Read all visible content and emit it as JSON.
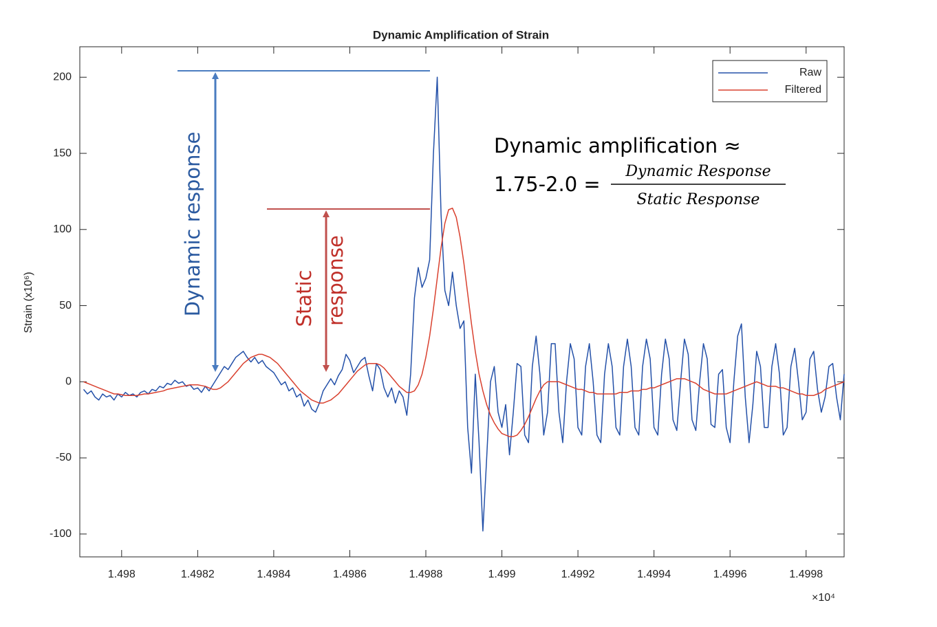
{
  "chart_data": {
    "type": "line",
    "title": "Dynamic Amplification of Strain",
    "y_label": "Strain (x10⁶)",
    "x_multiplier": "×10⁴",
    "x": [
      1.4979,
      1.49791,
      1.49792,
      1.49793,
      1.49794,
      1.49795,
      1.49796,
      1.49797,
      1.49798,
      1.49799,
      1.498,
      1.49801,
      1.49802,
      1.49803,
      1.49804,
      1.49805,
      1.49806,
      1.49807,
      1.49808,
      1.49809,
      1.4981,
      1.49811,
      1.49812,
      1.49813,
      1.49814,
      1.49815,
      1.49816,
      1.49817,
      1.49818,
      1.49819,
      1.4982,
      1.49821,
      1.49822,
      1.49823,
      1.49824,
      1.49825,
      1.49826,
      1.49827,
      1.49828,
      1.49829,
      1.4983,
      1.49831,
      1.49832,
      1.49833,
      1.49834,
      1.49835,
      1.49836,
      1.49837,
      1.49838,
      1.49839,
      1.4984,
      1.49841,
      1.49842,
      1.49843,
      1.49844,
      1.49845,
      1.49846,
      1.49847,
      1.49848,
      1.49849,
      1.4985,
      1.49851,
      1.49852,
      1.49853,
      1.49854,
      1.49855,
      1.49856,
      1.49857,
      1.49858,
      1.49859,
      1.4986,
      1.49861,
      1.49862,
      1.49863,
      1.49864,
      1.49865,
      1.49866,
      1.49867,
      1.49868,
      1.49869,
      1.4987,
      1.49871,
      1.49872,
      1.49873,
      1.49874,
      1.49875,
      1.49876,
      1.49877,
      1.49878,
      1.49879,
      1.4988,
      1.49881,
      1.49882,
      1.49883,
      1.49884,
      1.49885,
      1.49886,
      1.49887,
      1.49888,
      1.49889,
      1.4989,
      1.49891,
      1.49892,
      1.49893,
      1.49894,
      1.49895,
      1.49896,
      1.49897,
      1.49898,
      1.49899,
      1.499,
      1.49901,
      1.49902,
      1.49903,
      1.49904,
      1.49905,
      1.49906,
      1.49907,
      1.49908,
      1.49909,
      1.4991,
      1.49911,
      1.49912,
      1.49913,
      1.49914,
      1.49915,
      1.49916,
      1.49917,
      1.49918,
      1.49919,
      1.4992,
      1.49921,
      1.49922,
      1.49923,
      1.49924,
      1.49925,
      1.49926,
      1.49927,
      1.49928,
      1.49929,
      1.4993,
      1.49931,
      1.49932,
      1.49933,
      1.49934,
      1.49935,
      1.49936,
      1.49937,
      1.49938,
      1.49939,
      1.4994,
      1.49941,
      1.49942,
      1.49943,
      1.49944,
      1.49945,
      1.49946,
      1.49947,
      1.49948,
      1.49949,
      1.4995,
      1.49951,
      1.49952,
      1.49953,
      1.49954,
      1.49955,
      1.49956,
      1.49957,
      1.49958,
      1.49959,
      1.4996,
      1.49961,
      1.49962,
      1.49963,
      1.49964,
      1.49965,
      1.49966,
      1.49967,
      1.49968,
      1.49969,
      1.4997,
      1.49971,
      1.49972,
      1.49973,
      1.49974,
      1.49975,
      1.49976,
      1.49977,
      1.49978,
      1.49979,
      1.4998,
      1.49981,
      1.49982,
      1.49983,
      1.49984,
      1.49985,
      1.49986,
      1.49987,
      1.49988,
      1.49989,
      1.4999
    ],
    "series": [
      {
        "name": "Raw",
        "color": "#2350a8",
        "values": [
          -5,
          -8,
          -6,
          -10,
          -12,
          -8,
          -10,
          -9,
          -12,
          -8,
          -10,
          -7,
          -9,
          -8,
          -10,
          -7,
          -6,
          -8,
          -5,
          -6,
          -3,
          -4,
          -1,
          -2,
          1,
          -1,
          0,
          -3,
          -2,
          -5,
          -4,
          -7,
          -3,
          -6,
          -2,
          2,
          6,
          10,
          8,
          12,
          16,
          18,
          20,
          16,
          13,
          16,
          12,
          14,
          10,
          8,
          6,
          2,
          -2,
          0,
          -6,
          -4,
          -10,
          -8,
          -16,
          -12,
          -18,
          -20,
          -14,
          -6,
          -2,
          2,
          -2,
          4,
          8,
          18,
          14,
          6,
          10,
          14,
          16,
          4,
          -6,
          12,
          8,
          -4,
          -10,
          -4,
          -14,
          -6,
          -10,
          -22,
          5,
          55,
          75,
          62,
          68,
          80,
          150,
          200,
          110,
          60,
          50,
          72,
          50,
          35,
          40,
          -30,
          -60,
          5,
          -40,
          -98,
          -50,
          0,
          10,
          -20,
          -30,
          -15,
          -48,
          -20,
          12,
          10,
          -35,
          -40,
          10,
          30,
          5,
          -35,
          -20,
          25,
          25,
          -20,
          -40,
          0,
          25,
          15,
          -30,
          -35,
          10,
          25,
          0,
          -35,
          -40,
          5,
          25,
          10,
          -30,
          -35,
          10,
          28,
          10,
          -30,
          -35,
          10,
          28,
          15,
          -30,
          -35,
          5,
          28,
          15,
          -25,
          -32,
          0,
          28,
          18,
          -25,
          -32,
          0,
          25,
          15,
          -28,
          -30,
          5,
          8,
          -30,
          -40,
          0,
          30,
          38,
          -10,
          -40,
          -15,
          20,
          10,
          -30,
          -30,
          10,
          25,
          5,
          -35,
          -30,
          10,
          22,
          0,
          -25,
          -20,
          15,
          20,
          -5,
          -20,
          -10,
          10,
          12,
          -10,
          -25,
          5
        ]
      },
      {
        "name": "Filtered",
        "color": "#d9402e",
        "values": [
          0,
          -1,
          -2,
          -3,
          -4,
          -5,
          -6,
          -7,
          -8,
          -8,
          -8.5,
          -9,
          -9,
          -9,
          -9,
          -8.5,
          -8,
          -8,
          -7.5,
          -7,
          -6.5,
          -6,
          -5,
          -4.5,
          -4,
          -3.5,
          -3,
          -2.5,
          -2,
          -2,
          -2,
          -2.5,
          -3,
          -4,
          -5,
          -5,
          -4,
          -2,
          0,
          3,
          6,
          9,
          12,
          14,
          16,
          17,
          18,
          18,
          17,
          16,
          14,
          12,
          9,
          6,
          3,
          0,
          -3,
          -6,
          -8,
          -10,
          -12,
          -13,
          -14,
          -14,
          -13,
          -12,
          -10,
          -8,
          -5,
          -2,
          1,
          4,
          7,
          9,
          11,
          12,
          12,
          12,
          11,
          9,
          6,
          3,
          0,
          -3,
          -5,
          -7,
          -7,
          -6,
          -2,
          5,
          16,
          30,
          48,
          68,
          88,
          104,
          113,
          114,
          108,
          95,
          78,
          58,
          38,
          20,
          5,
          -6,
          -15,
          -22,
          -27,
          -31,
          -34,
          -35,
          -36,
          -36,
          -35,
          -32,
          -28,
          -23,
          -17,
          -11,
          -6,
          -2,
          0,
          0,
          0,
          0,
          -1,
          -2,
          -3,
          -4,
          -5,
          -5,
          -6,
          -7,
          -7,
          -8,
          -8,
          -8,
          -8,
          -8,
          -8,
          -7,
          -7,
          -7,
          -6,
          -6,
          -6,
          -5,
          -5,
          -4,
          -4,
          -3,
          -2,
          -1,
          0,
          1,
          2,
          2,
          2,
          1,
          0,
          -1,
          -3,
          -5,
          -6,
          -7,
          -8,
          -8,
          -8,
          -8,
          -7,
          -6,
          -5,
          -4,
          -3,
          -2,
          -1,
          0,
          -1,
          -2,
          -3,
          -3,
          -3,
          -4,
          -4,
          -5,
          -6,
          -7,
          -8,
          -8,
          -9,
          -9,
          -9,
          -8,
          -7,
          -5,
          -4,
          -3,
          -2,
          -1,
          0
        ]
      }
    ],
    "xlim": [
      1.49789,
      1.4999
    ],
    "ylim": [
      -115,
      220
    ],
    "xticks": [
      1.498,
      1.4982,
      1.4984,
      1.4986,
      1.4988,
      1.499,
      1.4992,
      1.4994,
      1.4996,
      1.4998
    ],
    "yticks": [
      -100,
      -50,
      0,
      50,
      100,
      150,
      200
    ],
    "grid": false,
    "legend": "northeast",
    "annotations": {
      "dynamic_response": "Dynamic response",
      "static_response": [
        "Static",
        "response"
      ],
      "formula_line_1": "Dynamic amplification ≈",
      "formula_line_2": "1.75-2.0 =",
      "numerator": "Dynamic Response",
      "denominator": "Static Response"
    }
  }
}
